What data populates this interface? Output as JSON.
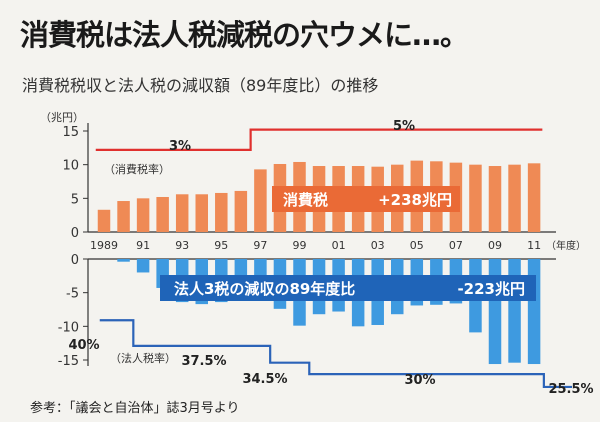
{
  "headline": "消費税は法人税減税の穴ウメに…。",
  "subtitle": "消費税税収と法人税の減収額（89年度比）の推移",
  "source": "参考：「議会と自治体」誌3月号より",
  "colors": {
    "consumption_bar": "#ef8a55",
    "corporate_bar": "#3e9ae0",
    "rate_line_red": "#e0302e",
    "rate_line_blue": "#2b63b8",
    "label_box_orange": "#ea6a36",
    "label_box_blue": "#1f64b8",
    "label_text": "#ffffff",
    "axis": "#333333"
  },
  "chart_data": [
    {
      "type": "bar",
      "panel": "upper",
      "y_unit_label": "（兆円）",
      "x_unit_label": "（年度）",
      "categories": [
        "1989",
        "1990",
        "1991",
        "1992",
        "1993",
        "1994",
        "1995",
        "1996",
        "1997",
        "1998",
        "1999",
        "2000",
        "2001",
        "2002",
        "2003",
        "2004",
        "2005",
        "2006",
        "2007",
        "2008",
        "2009",
        "2010",
        "2011"
      ],
      "x_tick_labels": [
        {
          "year": "1989",
          "label": "1989"
        },
        {
          "year": "1991",
          "label": "91"
        },
        {
          "year": "1993",
          "label": "93"
        },
        {
          "year": "1995",
          "label": "95"
        },
        {
          "year": "1997",
          "label": "97"
        },
        {
          "year": "1999",
          "label": "99"
        },
        {
          "year": "2001",
          "label": "01"
        },
        {
          "year": "2003",
          "label": "03"
        },
        {
          "year": "2005",
          "label": "05"
        },
        {
          "year": "2007",
          "label": "07"
        },
        {
          "year": "2009",
          "label": "09"
        },
        {
          "year": "2011",
          "label": "11"
        }
      ],
      "series": [
        {
          "values": [
            3.3,
            4.6,
            5.0,
            5.2,
            5.6,
            5.6,
            5.8,
            6.1,
            9.3,
            10.1,
            10.4,
            9.8,
            9.8,
            9.8,
            9.7,
            10.0,
            10.6,
            10.5,
            10.3,
            10.0,
            9.8,
            10.0,
            10.2
          ]
        }
      ],
      "tax_rate": {
        "label": "（消費税率）",
        "level": [
          12.2,
          12.2,
          12.2,
          12.2,
          12.2,
          12.2,
          12.2,
          12.2,
          15.2,
          15.2,
          15.2,
          15.2,
          15.2,
          15.2,
          15.2,
          15.2,
          15.2,
          15.2,
          15.2,
          15.2,
          15.2,
          15.2,
          15.2
        ],
        "rates": [
          {
            "label": "3%",
            "years": "1989-1996"
          },
          {
            "label": "5%",
            "years": "1997-2011"
          }
        ]
      },
      "annotation": {
        "name": "消費税",
        "value": "+238兆円"
      },
      "ylim": [
        0,
        15
      ],
      "yticks": [
        0,
        5,
        10,
        15
      ],
      "grid": false
    },
    {
      "type": "bar",
      "panel": "lower",
      "categories": [
        "1989",
        "1990",
        "1991",
        "1992",
        "1993",
        "1994",
        "1995",
        "1996",
        "1997",
        "1998",
        "1999",
        "2000",
        "2001",
        "2002",
        "2003",
        "2004",
        "2005",
        "2006",
        "2007",
        "2008",
        "2009",
        "2010",
        "2011"
      ],
      "series": [
        {
          "values": [
            0,
            -0.4,
            -2.0,
            -4.3,
            -6.4,
            -6.7,
            -6.4,
            -5.6,
            -5.4,
            -7.4,
            -9.9,
            -8.2,
            -7.8,
            -10.0,
            -9.8,
            -8.2,
            -6.9,
            -6.8,
            -6.6,
            -10.9,
            -15.6,
            -15.4,
            -15.6
          ]
        }
      ],
      "tax_rate": {
        "label": "（法人税率）",
        "level": [
          -9.1,
          -9.1,
          -12.9,
          -12.9,
          -12.9,
          -12.9,
          -12.9,
          -12.9,
          -12.9,
          -15.4,
          -15.4,
          -17.1,
          -17.1,
          -17.1,
          -17.1,
          -17.1,
          -17.1,
          -17.1,
          -17.1,
          -17.1,
          -17.1,
          -17.1,
          -17.1,
          -19.0
        ],
        "rates": [
          {
            "label": "40%"
          },
          {
            "label": "37.5%"
          },
          {
            "label": "34.5%"
          },
          {
            "label": "30%"
          },
          {
            "label": "25.5%"
          }
        ]
      },
      "annotation": {
        "name": "法人3税の減収の89年度比",
        "value": "-223兆円"
      },
      "ylim": [
        -15,
        0
      ],
      "yticks": [
        0,
        -5,
        -10,
        -15
      ],
      "grid": false
    }
  ]
}
